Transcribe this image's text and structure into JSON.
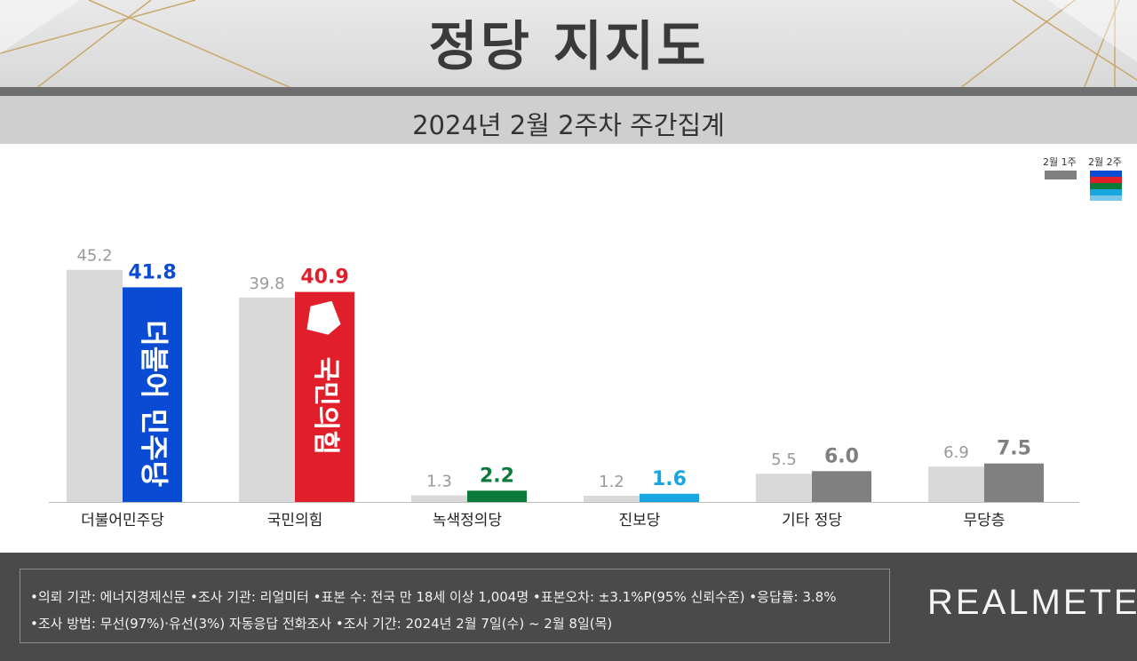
{
  "title": "정당 지지도",
  "subtitle": "2024년 2월 2주차 주간집계",
  "legend": {
    "prev_label": "2월 1주",
    "curr_label": "2월 2주"
  },
  "chart_data": {
    "type": "bar",
    "categories": [
      "더불어민주당",
      "국민의힘",
      "녹색정의당",
      "진보당",
      "기타 정당",
      "무당층"
    ],
    "series": [
      {
        "name": "2월 1주",
        "values": [
          45.2,
          39.8,
          1.3,
          1.2,
          5.5,
          6.9
        ]
      },
      {
        "name": "2월 2주",
        "values": [
          41.8,
          40.9,
          2.2,
          1.6,
          6.0,
          7.5
        ]
      }
    ],
    "colors": {
      "prev": "#d9d9d9",
      "curr": [
        "#0a4bd3",
        "#e11f2b",
        "#0c7a3a",
        "#17a6e0",
        "#808080",
        "#808080"
      ],
      "prev_label": "#999999",
      "curr_label": [
        "#0a4bd3",
        "#e11f2b",
        "#0c7a3a",
        "#17a6e0",
        "#808080",
        "#808080"
      ]
    },
    "bar_logos": [
      "더불어 민주당",
      "국민의힘",
      "",
      "",
      "",
      ""
    ],
    "xlabel": "",
    "ylabel": "",
    "legend_position": "top-right"
  },
  "footer": {
    "line1": "•의뢰 기관: 에너지경제신문  •조사 기관: 리얼미터 •표본 수: 전국 만 18세 이상 1,004명 •표본오차: ±3.1%P(95% 신뢰수준) •응답률: 3.8%",
    "line2": "•조사 방법: 무선(97%)·유선(3%) 자동응답 전화조사 •조사 기간: 2024년 2월 7일(수) ~ 2월 8일(목)",
    "logo": "REALMETER"
  }
}
